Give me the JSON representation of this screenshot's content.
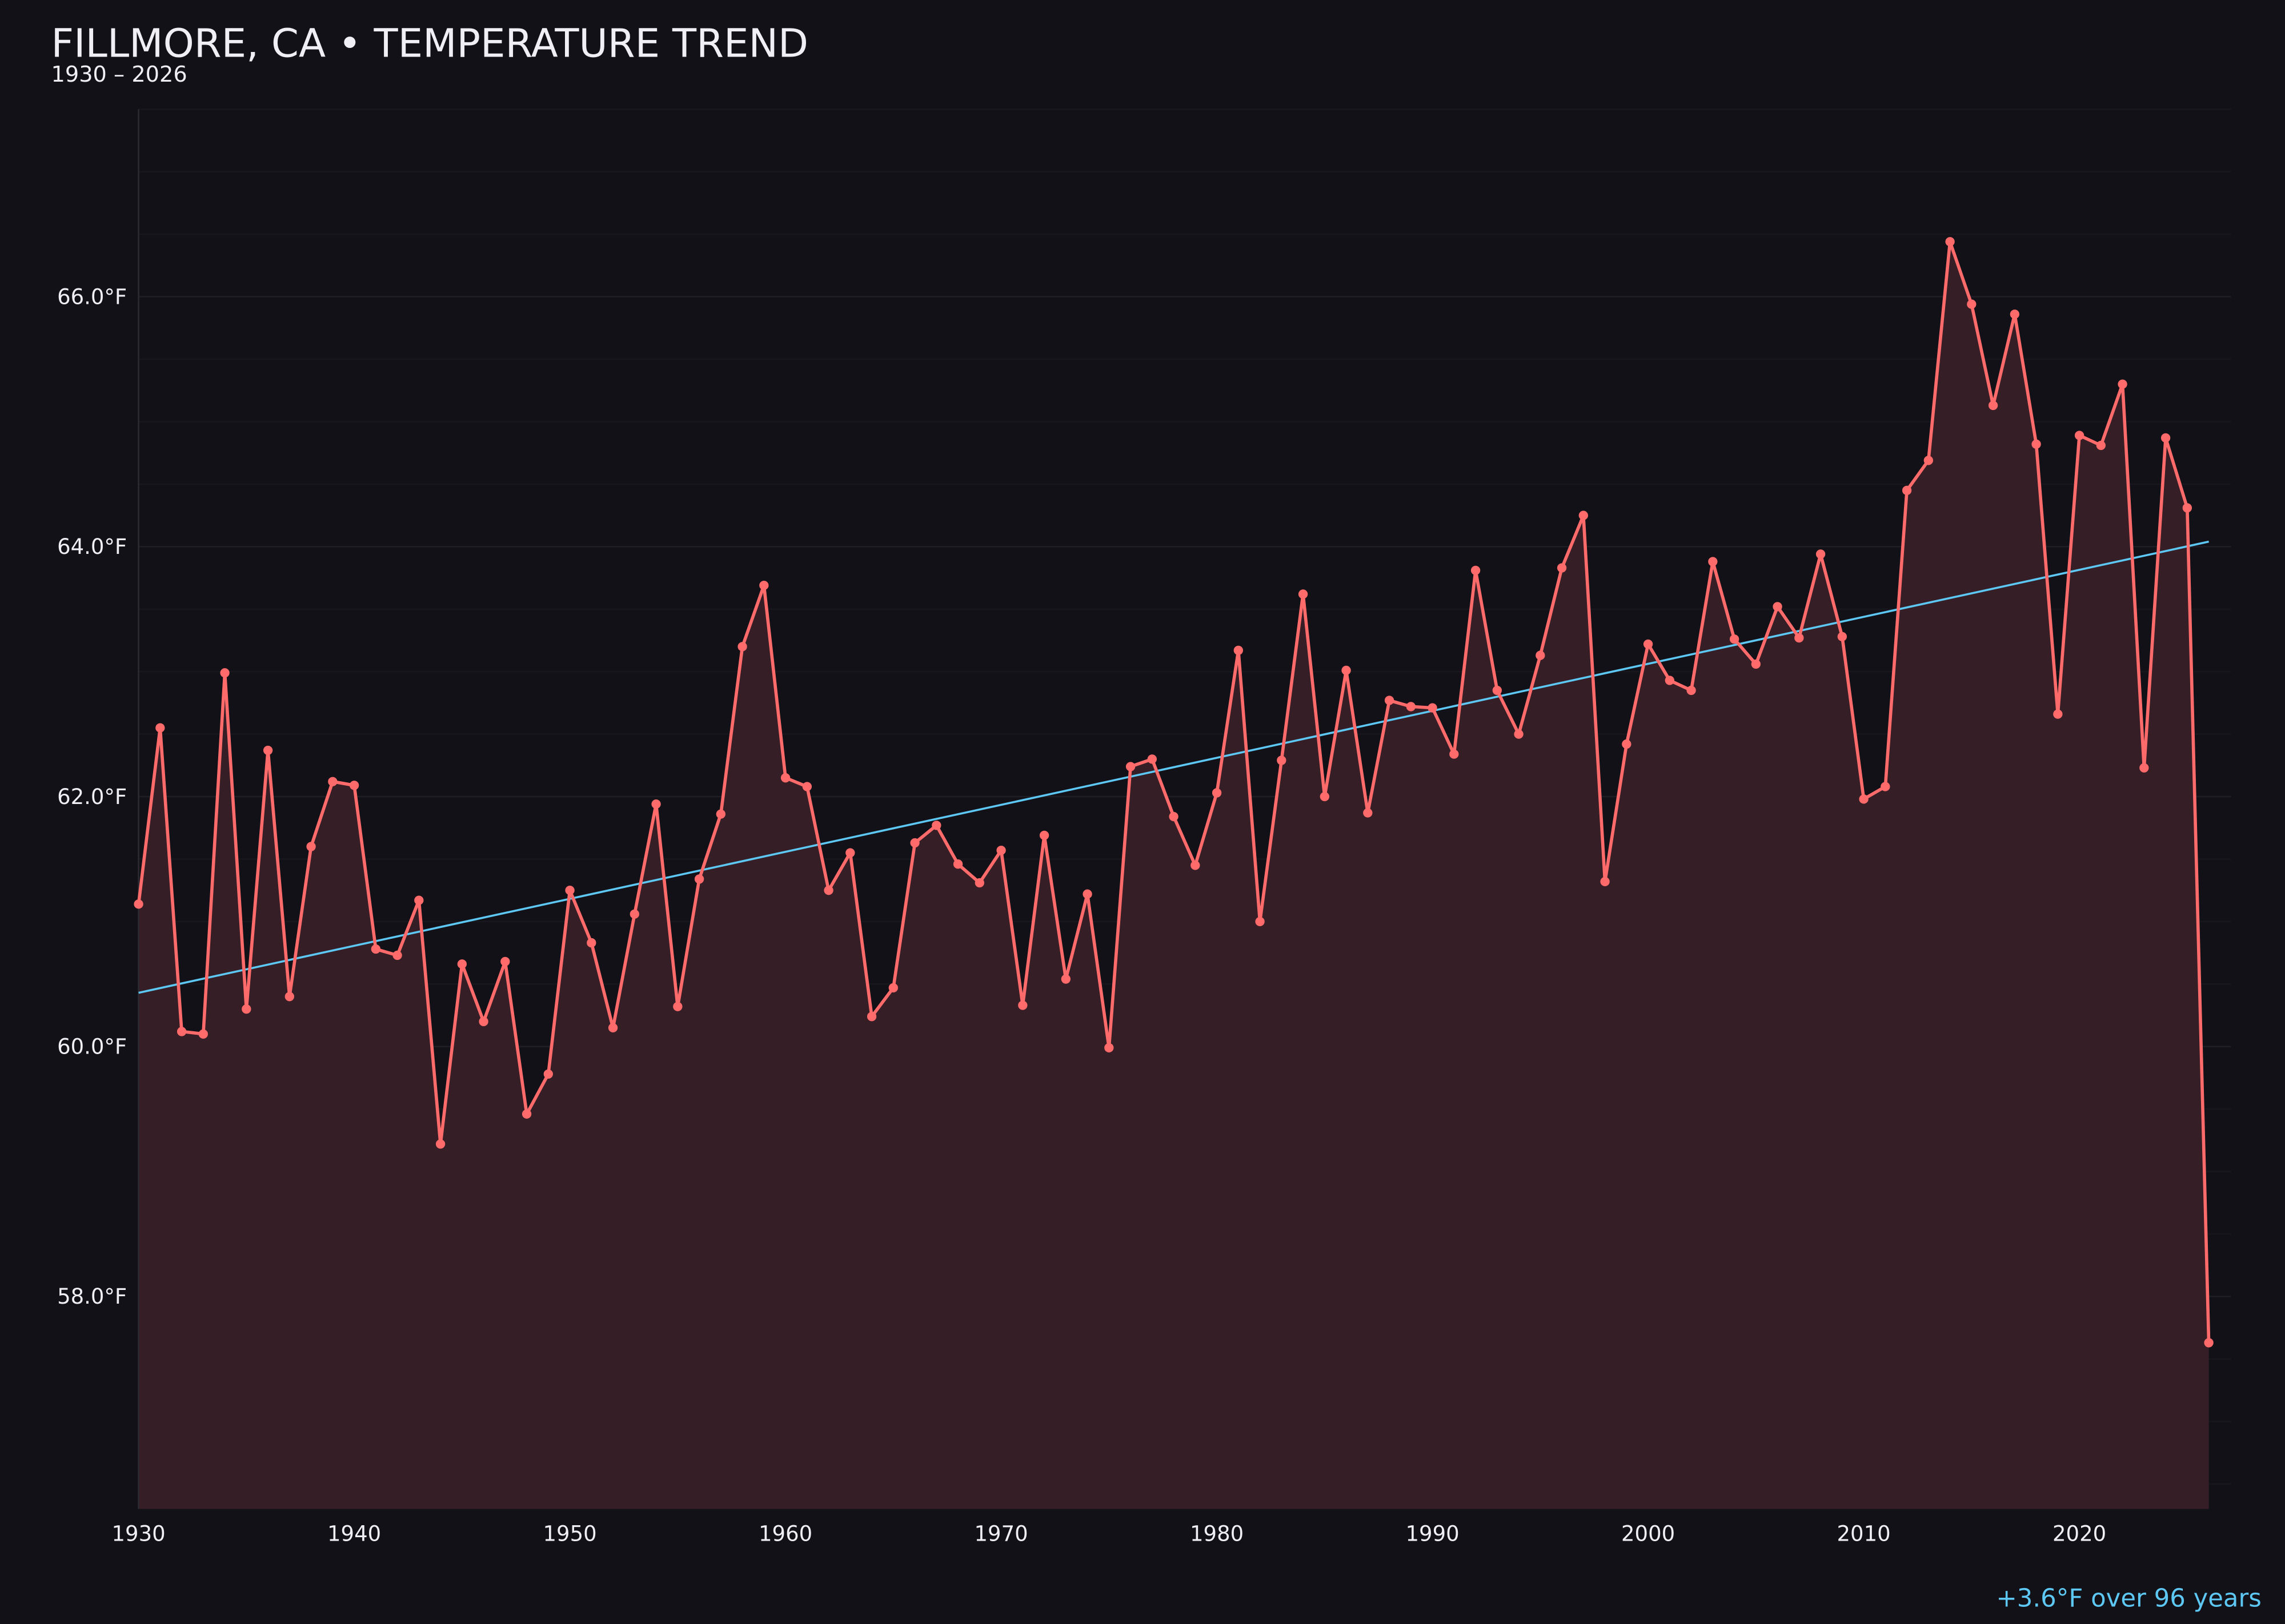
{
  "chart_data": {
    "type": "line",
    "title": "FILLMORE, CA • TEMPERATURE TREND",
    "subtitle": "1930 – 2026",
    "annotation": "+3.6°F over 96 years",
    "xlabel": "",
    "ylabel": "",
    "xlim": [
      1930,
      2027
    ],
    "ylim": [
      56.3,
      67.5
    ],
    "x_ticks": [
      1930,
      1940,
      1950,
      1960,
      1970,
      1980,
      1990,
      2000,
      2010,
      2020
    ],
    "x_tick_labels": [
      "1930",
      "1940",
      "1950",
      "1960",
      "1970",
      "1980",
      "1990",
      "2000",
      "2010",
      "2020"
    ],
    "y_ticks": [
      58,
      60,
      62,
      64,
      66
    ],
    "y_tick_labels": [
      "58.0°F",
      "60.0°F",
      "62.0°F",
      "64.0°F",
      "66.0°F"
    ],
    "grid": true,
    "colors": {
      "background": "#121117",
      "series": "#ff6b6b",
      "fill": "#351e25",
      "trend": "#5ec8f5",
      "grid": "#1f1e24"
    },
    "x": [
      1930,
      1931,
      1932,
      1933,
      1934,
      1935,
      1936,
      1937,
      1938,
      1939,
      1940,
      1941,
      1942,
      1943,
      1944,
      1945,
      1946,
      1947,
      1948,
      1949,
      1950,
      1951,
      1952,
      1953,
      1954,
      1955,
      1956,
      1957,
      1958,
      1959,
      1960,
      1961,
      1962,
      1963,
      1964,
      1965,
      1966,
      1967,
      1968,
      1969,
      1970,
      1971,
      1972,
      1973,
      1974,
      1975,
      1976,
      1977,
      1978,
      1979,
      1980,
      1981,
      1982,
      1983,
      1984,
      1985,
      1986,
      1987,
      1988,
      1989,
      1990,
      1991,
      1992,
      1993,
      1994,
      1995,
      1996,
      1997,
      1998,
      1999,
      2000,
      2001,
      2002,
      2003,
      2004,
      2005,
      2006,
      2007,
      2008,
      2009,
      2010,
      2011,
      2012,
      2013,
      2014,
      2015,
      2016,
      2017,
      2018,
      2019,
      2020,
      2021,
      2022,
      2023,
      2024,
      2025,
      2026
    ],
    "values": [
      61.14,
      62.55,
      60.12,
      60.1,
      62.99,
      60.3,
      62.37,
      60.4,
      61.6,
      62.12,
      62.09,
      60.78,
      60.73,
      61.17,
      59.22,
      60.66,
      60.2,
      60.68,
      59.46,
      59.78,
      61.25,
      60.83,
      60.15,
      61.06,
      61.94,
      60.32,
      61.34,
      61.86,
      63.2,
      63.69,
      62.15,
      62.08,
      61.25,
      61.55,
      60.24,
      60.47,
      61.63,
      61.77,
      61.46,
      61.31,
      61.57,
      60.33,
      61.69,
      60.54,
      61.22,
      59.99,
      62.24,
      62.3,
      61.84,
      61.45,
      62.03,
      63.17,
      61.0,
      62.29,
      63.62,
      62.0,
      63.01,
      61.87,
      62.77,
      62.72,
      62.71,
      62.34,
      63.81,
      62.85,
      62.5,
      63.13,
      63.83,
      64.25,
      61.32,
      62.42,
      63.22,
      62.93,
      62.85,
      63.88,
      63.26,
      63.06,
      63.52,
      63.27,
      63.94,
      63.28,
      61.98,
      62.08,
      64.45,
      64.69,
      66.44,
      65.94,
      65.13,
      65.86,
      64.82,
      62.66,
      64.89,
      64.81,
      65.3,
      62.23,
      64.87,
      64.31,
      57.63
    ],
    "trend": {
      "x": [
        1930,
        2026
      ],
      "y": [
        60.43,
        64.04
      ]
    }
  }
}
